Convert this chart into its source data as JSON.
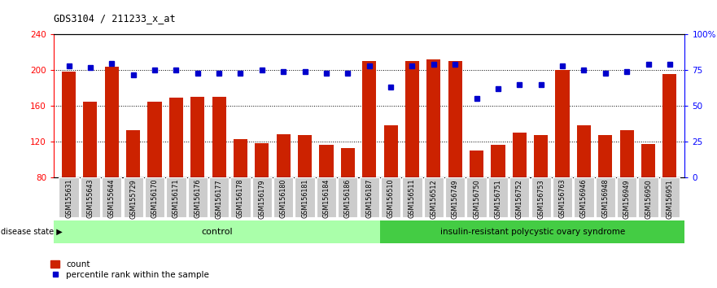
{
  "title": "GDS3104 / 211233_x_at",
  "samples": [
    "GSM155631",
    "GSM155643",
    "GSM155644",
    "GSM155729",
    "GSM156170",
    "GSM156171",
    "GSM156176",
    "GSM156177",
    "GSM156178",
    "GSM156179",
    "GSM156180",
    "GSM156181",
    "GSM156184",
    "GSM156186",
    "GSM156187",
    "GSM156510",
    "GSM156511",
    "GSM156512",
    "GSM156749",
    "GSM156750",
    "GSM156751",
    "GSM156752",
    "GSM156753",
    "GSM156763",
    "GSM156946",
    "GSM156948",
    "GSM156949",
    "GSM156950",
    "GSM156951"
  ],
  "bar_values": [
    198,
    165,
    204,
    133,
    165,
    169,
    170,
    170,
    123,
    118,
    128,
    127,
    116,
    113,
    210,
    138,
    210,
    212,
    210,
    110,
    116,
    130,
    127,
    200,
    138,
    127,
    133,
    117,
    196
  ],
  "percentile_values": [
    78,
    77,
    80,
    72,
    75,
    75,
    73,
    73,
    73,
    75,
    74,
    74,
    73,
    73,
    78,
    63,
    78,
    79,
    79,
    55,
    62,
    65,
    65,
    78,
    75,
    73,
    74,
    79,
    79
  ],
  "control_count": 15,
  "disease_count": 14,
  "ylim_left": [
    80,
    240
  ],
  "ylim_right": [
    0,
    100
  ],
  "yticks_left": [
    80,
    120,
    160,
    200,
    240
  ],
  "yticks_right": [
    0,
    25,
    50,
    75,
    100
  ],
  "ytick_labels_right": [
    "0",
    "25",
    "50",
    "75",
    "100%"
  ],
  "bar_color": "#CC2200",
  "dot_color": "#0000CC",
  "control_color": "#AAFFAA",
  "disease_color": "#44CC44",
  "label_bg_color": "#CCCCCC",
  "legend_count_label": "count",
  "legend_pct_label": "percentile rank within the sample",
  "group_label": "disease state",
  "control_label": "control",
  "disease_label": "insulin-resistant polycystic ovary syndrome",
  "grid_values": [
    120,
    160,
    200
  ]
}
